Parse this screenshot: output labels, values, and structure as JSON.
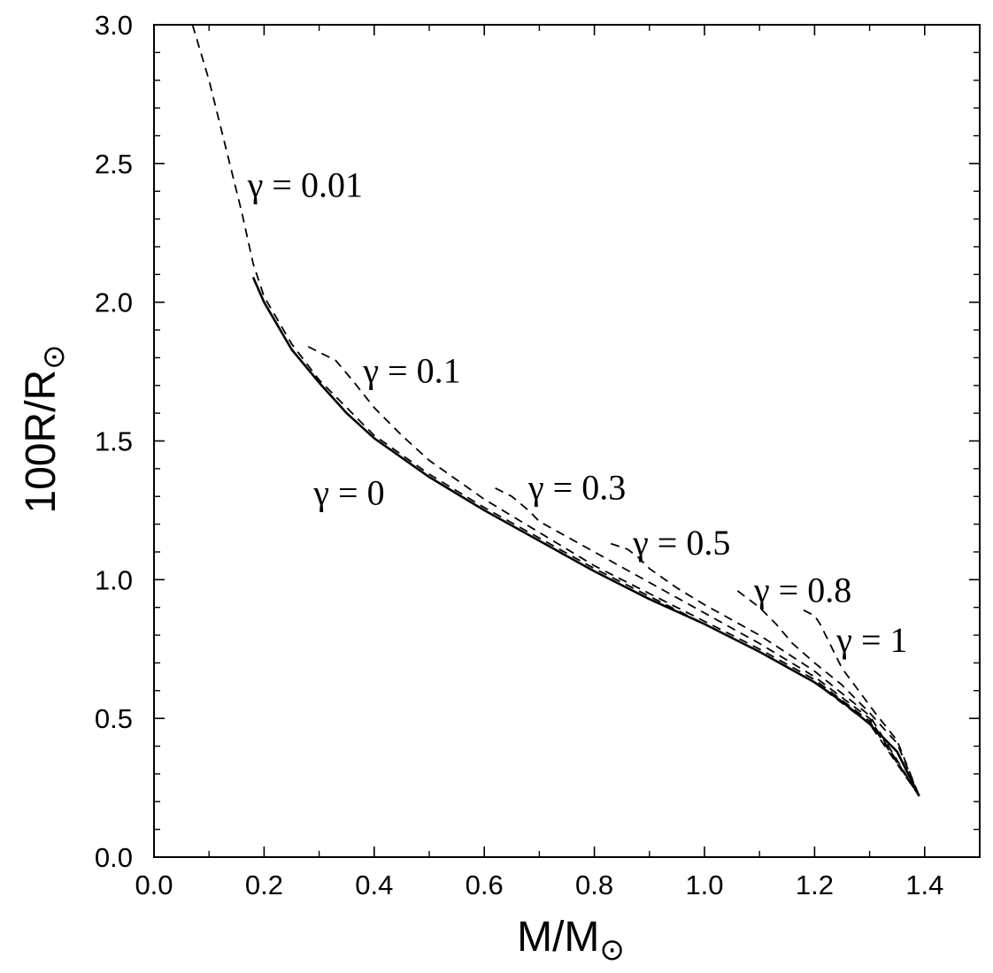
{
  "chart_data": {
    "type": "line",
    "title": "",
    "xlabel": "M/M",
    "xlabel_sub": "⊙",
    "ylabel": "100R/R",
    "ylabel_sub": "⊙",
    "xlim": [
      0.0,
      1.5
    ],
    "ylim": [
      0.0,
      3.0
    ],
    "x_ticks": [
      "0.0",
      "0.2",
      "0.4",
      "0.6",
      "0.8",
      "1.0",
      "1.2",
      "1.4"
    ],
    "y_ticks": [
      "0.0",
      "0.5",
      "1.0",
      "1.5",
      "2.0",
      "2.5",
      "3.0"
    ],
    "grid": false,
    "legend": "none",
    "series": [
      {
        "gamma": "0",
        "style": "solid",
        "points": [
          [
            0.18,
            2.09
          ],
          [
            0.2,
            2.0
          ],
          [
            0.25,
            1.83
          ],
          [
            0.3,
            1.71
          ],
          [
            0.35,
            1.6
          ],
          [
            0.4,
            1.51
          ],
          [
            0.5,
            1.37
          ],
          [
            0.6,
            1.25
          ],
          [
            0.7,
            1.14
          ],
          [
            0.8,
            1.03
          ],
          [
            0.9,
            0.93
          ],
          [
            1.0,
            0.84
          ],
          [
            1.1,
            0.74
          ],
          [
            1.2,
            0.63
          ],
          [
            1.25,
            0.56
          ],
          [
            1.3,
            0.48
          ],
          [
            1.35,
            0.38
          ],
          [
            1.39,
            0.22
          ]
        ]
      },
      {
        "gamma": "0.01",
        "style": "dashed",
        "points": [
          [
            0.07,
            3.0
          ],
          [
            0.1,
            2.8
          ],
          [
            0.13,
            2.56
          ],
          [
            0.16,
            2.32
          ],
          [
            0.18,
            2.14
          ],
          [
            0.2,
            2.02
          ],
          [
            0.25,
            1.85
          ],
          [
            0.3,
            1.72
          ],
          [
            0.4,
            1.52
          ],
          [
            0.5,
            1.38
          ],
          [
            0.6,
            1.26
          ],
          [
            0.7,
            1.15
          ],
          [
            0.8,
            1.04
          ],
          [
            0.9,
            0.94
          ],
          [
            1.0,
            0.84
          ],
          [
            1.1,
            0.74
          ],
          [
            1.2,
            0.63
          ],
          [
            1.3,
            0.48
          ],
          [
            1.39,
            0.22
          ]
        ]
      },
      {
        "gamma": "0.1",
        "style": "dashed",
        "points": [
          [
            0.28,
            1.84
          ],
          [
            0.3,
            1.82
          ],
          [
            0.33,
            1.79
          ],
          [
            0.36,
            1.72
          ],
          [
            0.4,
            1.62
          ],
          [
            0.45,
            1.52
          ],
          [
            0.5,
            1.43
          ],
          [
            0.6,
            1.29
          ],
          [
            0.7,
            1.17
          ],
          [
            0.8,
            1.05
          ],
          [
            0.9,
            0.95
          ],
          [
            1.0,
            0.85
          ],
          [
            1.1,
            0.75
          ],
          [
            1.2,
            0.64
          ],
          [
            1.3,
            0.49
          ],
          [
            1.39,
            0.22
          ]
        ]
      },
      {
        "gamma": "0.3",
        "style": "dashed",
        "points": [
          [
            0.62,
            1.33
          ],
          [
            0.65,
            1.3
          ],
          [
            0.68,
            1.25
          ],
          [
            0.7,
            1.21
          ],
          [
            0.8,
            1.1
          ],
          [
            0.9,
            0.99
          ],
          [
            1.0,
            0.88
          ],
          [
            1.1,
            0.77
          ],
          [
            1.2,
            0.65
          ],
          [
            1.3,
            0.5
          ],
          [
            1.39,
            0.22
          ]
        ]
      },
      {
        "gamma": "0.5",
        "style": "dashed",
        "points": [
          [
            0.83,
            1.13
          ],
          [
            0.86,
            1.11
          ],
          [
            0.88,
            1.08
          ],
          [
            0.9,
            1.04
          ],
          [
            0.95,
            0.97
          ],
          [
            1.0,
            0.91
          ],
          [
            1.1,
            0.8
          ],
          [
            1.2,
            0.67
          ],
          [
            1.3,
            0.51
          ],
          [
            1.39,
            0.22
          ]
        ]
      },
      {
        "gamma": "0.8",
        "style": "dashed",
        "points": [
          [
            1.06,
            0.96
          ],
          [
            1.08,
            0.93
          ],
          [
            1.1,
            0.9
          ],
          [
            1.13,
            0.84
          ],
          [
            1.16,
            0.77
          ],
          [
            1.2,
            0.7
          ],
          [
            1.25,
            0.62
          ],
          [
            1.3,
            0.52
          ],
          [
            1.35,
            0.41
          ],
          [
            1.39,
            0.22
          ]
        ]
      },
      {
        "gamma": "1",
        "style": "dashed",
        "points": [
          [
            1.18,
            0.89
          ],
          [
            1.2,
            0.87
          ],
          [
            1.21,
            0.84
          ],
          [
            1.23,
            0.76
          ],
          [
            1.25,
            0.68
          ],
          [
            1.28,
            0.6
          ],
          [
            1.31,
            0.52
          ],
          [
            1.35,
            0.42
          ],
          [
            1.39,
            0.22
          ]
        ]
      }
    ],
    "annotations": [
      {
        "text": "γ = 0.01",
        "x": 0.17,
        "y": 2.38
      },
      {
        "text": "γ = 0.1",
        "x": 0.38,
        "y": 1.71
      },
      {
        "text": "γ = 0",
        "x": 0.29,
        "y": 1.27
      },
      {
        "text": "γ = 0.3",
        "x": 0.68,
        "y": 1.29
      },
      {
        "text": "γ = 0.5",
        "x": 0.87,
        "y": 1.09
      },
      {
        "text": "γ = 0.8",
        "x": 1.09,
        "y": 0.92
      },
      {
        "text": "γ = 1",
        "x": 1.24,
        "y": 0.74
      }
    ]
  }
}
